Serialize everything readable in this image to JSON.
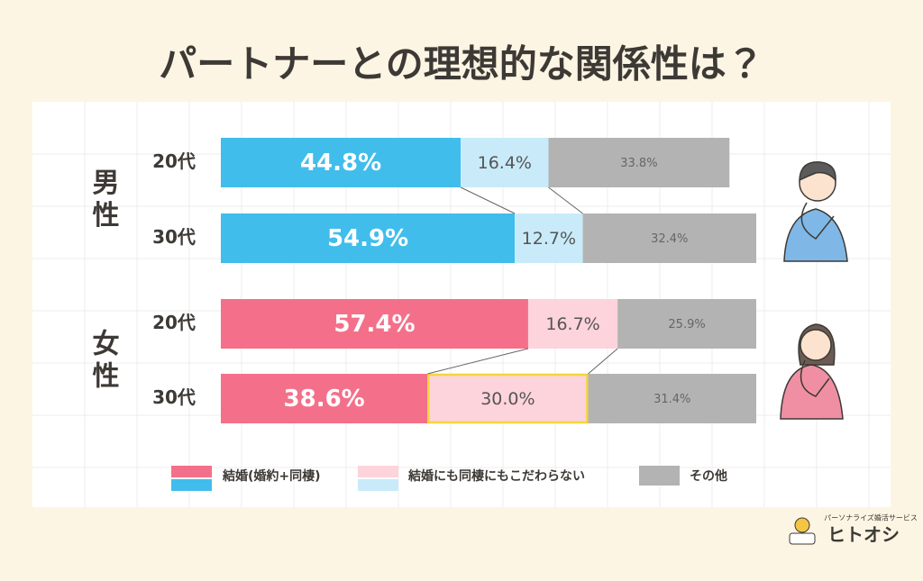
{
  "chart_data": {
    "type": "bar",
    "orientation": "horizontal",
    "stacked": true,
    "title": "パートナーとの理想的な関係性は？",
    "legend": [
      "結婚(婚約+同棲)",
      "結婚にも同棲にもこだわらない",
      "その他"
    ],
    "xlim": [
      0,
      100
    ],
    "groups": [
      {
        "name": "男性",
        "colors": [
          "#41bdeb",
          "#c9ebf9",
          "#b3b3b3"
        ],
        "rows": [
          {
            "category": "20代",
            "values": [
              44.8,
              16.4,
              33.8
            ],
            "value_labels": [
              "44.8%",
              "16.4%",
              "33.8%"
            ]
          },
          {
            "category": "30代",
            "values": [
              54.9,
              12.7,
              32.4
            ],
            "value_labels": [
              "54.9%",
              "12.7%",
              "32.4%"
            ]
          }
        ]
      },
      {
        "name": "女性",
        "colors": [
          "#f4708a",
          "#fdd3dc",
          "#b3b3b3"
        ],
        "rows": [
          {
            "category": "20代",
            "values": [
              57.4,
              16.7,
              25.9
            ],
            "value_labels": [
              "57.4%",
              "16.7%",
              "25.9%"
            ]
          },
          {
            "category": "30代",
            "values": [
              38.6,
              30.0,
              31.4
            ],
            "value_labels": [
              "38.6%",
              "30.0%",
              "31.4%"
            ],
            "highlight_segment": 1
          }
        ]
      }
    ]
  },
  "brand": {
    "tagline": "パーソナライズ婚活サービス",
    "name": "ヒトオシ"
  }
}
